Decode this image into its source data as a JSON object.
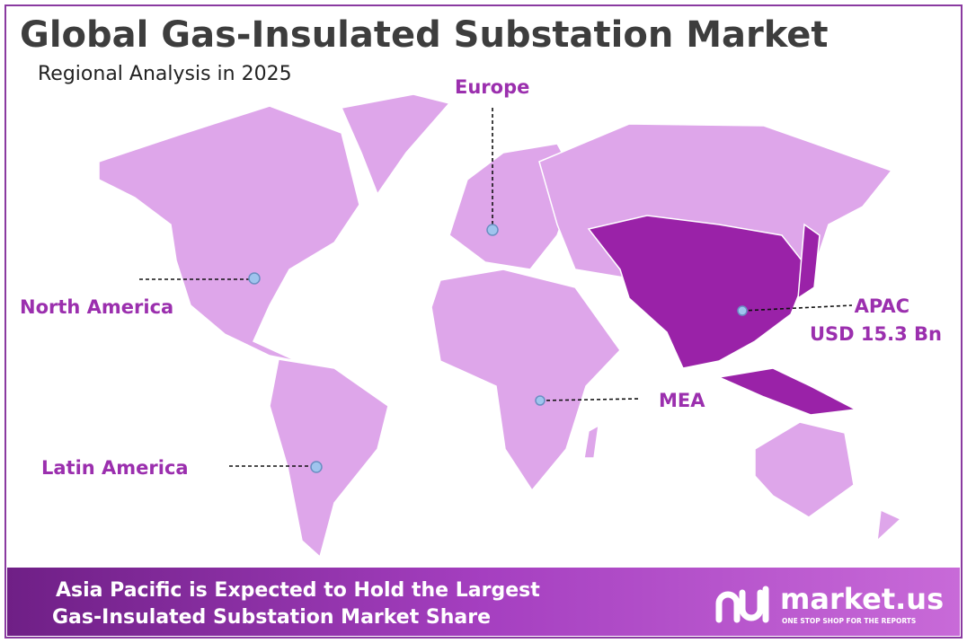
{
  "header": {
    "title": "Global Gas-Insulated Substation Market",
    "subtitle": "Regional Analysis in 2025"
  },
  "regions": [
    {
      "label": "Europe"
    },
    {
      "label": "North America"
    },
    {
      "label": "APAC",
      "value": "USD 15.3 Bn"
    },
    {
      "label": "MEA"
    },
    {
      "label": "Latin America"
    }
  ],
  "footer": {
    "line1": "Asia Pacific is Expected to Hold the Largest",
    "line2": "Gas-Insulated Substation Market Share"
  },
  "logo": {
    "name": "market.us",
    "tagline": "ONE STOP SHOP FOR THE REPORTS"
  }
}
